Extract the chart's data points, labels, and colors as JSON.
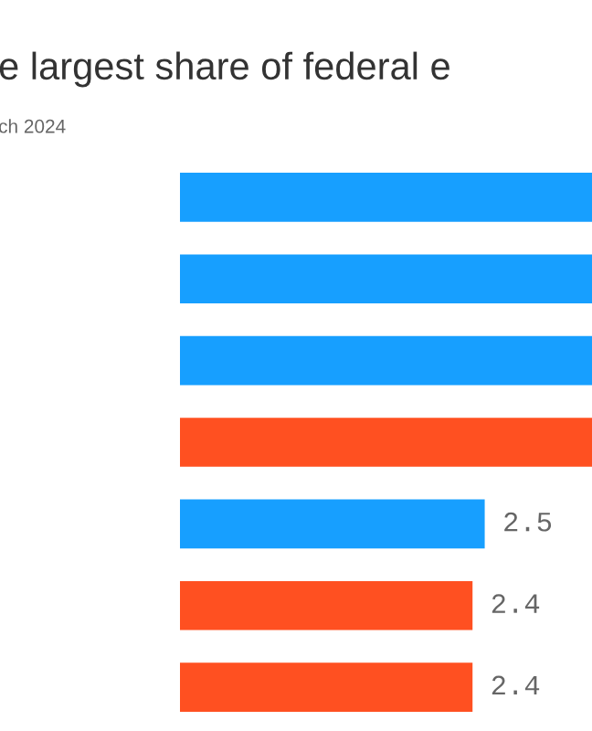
{
  "chart_data": {
    "type": "bar",
    "orientation": "horizontal",
    "title": "e largest share of federal e",
    "subtitle": "ch 2024",
    "categories": [
      null,
      null,
      null,
      null,
      null,
      null,
      null
    ],
    "values": [
      3.38,
      3.38,
      3.38,
      3.38,
      2.5,
      2.4,
      2.4
    ],
    "colors": [
      "#179fff",
      "#179fff",
      "#179fff",
      "#ff5021",
      "#179fff",
      "#ff5021",
      "#ff5021"
    ],
    "value_labels": [
      null,
      null,
      null,
      null,
      "2.5",
      "2.4",
      "2.4"
    ],
    "xlim": [
      0,
      3.38
    ]
  }
}
